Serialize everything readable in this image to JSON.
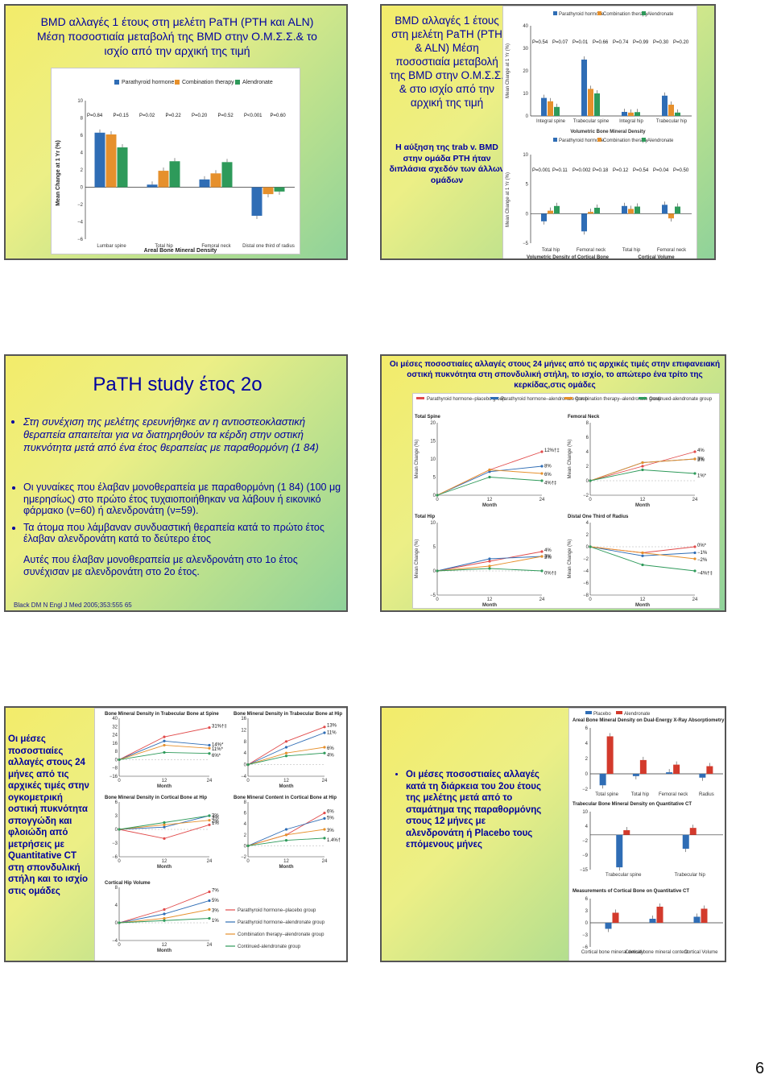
{
  "slide1": {
    "heading": "BMD αλλαγές 1 έτους στη μελέτη PaTH (PTH και ALN) Μέση ποσοστιαία μεταβολή της BMD στην Ο.Μ.Σ.Σ.& το ισχίο από την αρχική της τιμή",
    "chart_data": {
      "type": "bar",
      "title": "",
      "xlabel": "Areal Bone Mineral Density",
      "ylabel": "Mean Change at 1 Yr (%)",
      "ylim": [
        -6,
        10
      ],
      "yticks": [
        "10",
        "8",
        "6",
        "4",
        "2",
        "0",
        "−2",
        "−4",
        "−6"
      ],
      "categories": [
        "Lumbar spine",
        "Total hip",
        "Femoral neck",
        "Distal one third of radius"
      ],
      "series": [
        {
          "name": "Parathyroid hormone",
          "color": "#2f6db5",
          "values": [
            6.3,
            0.3,
            0.9,
            -3.3
          ]
        },
        {
          "name": "Combination therapy",
          "color": "#e6902c",
          "values": [
            6.1,
            1.9,
            1.6,
            -0.8
          ]
        },
        {
          "name": "Alendronate",
          "color": "#2e9a5a",
          "values": [
            4.6,
            3.0,
            2.9,
            -0.5
          ]
        }
      ],
      "pvalues": [
        [
          "P=0.84",
          "P=0.15"
        ],
        [
          "P=0.02",
          "P=0.22"
        ],
        [
          "P=0.20",
          "P=0.52"
        ],
        [
          "P<0.001",
          "P=0.60"
        ]
      ]
    }
  },
  "slide2": {
    "heading": "BMD αλλαγές 1 έτους στη μελέτη PaTH (PTH & ALN) Μέση ποσοστιαία μεταβολή της BMD στην Ο.Μ.Σ.Σ. & στο ισχίο από την αρχική της τιμή",
    "note": "Η αύξηση της trab v. BMD στην ομάδα PTH ήταν διπλάσια σχεδόν των άλλων ομάδων",
    "chart_top": {
      "type": "bar",
      "xlabel": "Volumetric Bone Mineral Density",
      "ylabel": "Mean Change at 1 Yr (%)",
      "ylim": [
        0,
        40
      ],
      "yticks": [
        "40",
        "30",
        "20",
        "10",
        "0"
      ],
      "categories": [
        "Integral spine",
        "Trabecular spine",
        "Integral hip",
        "Trabecular hip"
      ],
      "series": [
        {
          "name": "Parathyroid hormone",
          "color": "#2f6db5",
          "values": [
            8,
            25,
            1.8,
            9
          ]
        },
        {
          "name": "Combination therapy",
          "color": "#e6902c",
          "values": [
            6.5,
            12,
            1.5,
            5
          ]
        },
        {
          "name": "Alendronate",
          "color": "#2e9a5a",
          "values": [
            4,
            10,
            1.7,
            1.5
          ]
        }
      ],
      "pvalues": [
        [
          "P=0.54",
          "P=0.07"
        ],
        [
          "P=0.01",
          "P=0.66"
        ],
        [
          "P=0.74",
          "P=0.99"
        ],
        [
          "P=0.30",
          "P=0.20"
        ]
      ]
    },
    "chart_bottom": {
      "type": "bar",
      "xlabel": "Volumetric Density of Cortical Bone",
      "xlabel2": "Cortical Volume",
      "ylabel": "Mean Change at 1 Yr (%)",
      "ylim": [
        -5,
        10
      ],
      "yticks": [
        "10",
        "5",
        "0",
        "−5"
      ],
      "categories": [
        "Total hip",
        "Femoral neck",
        "Total hip",
        "Femoral neck"
      ],
      "series": [
        {
          "name": "Parathyroid hormone",
          "color": "#2f6db5",
          "values": [
            -1.3,
            -3.0,
            1.3,
            1.5
          ]
        },
        {
          "name": "Combination therapy",
          "color": "#e6902c",
          "values": [
            0.5,
            0.3,
            0.8,
            -0.8
          ]
        },
        {
          "name": "Alendronate",
          "color": "#2e9a5a",
          "values": [
            1.3,
            1.0,
            1.2,
            1.2
          ]
        }
      ],
      "pvalues": [
        [
          "P=0.001",
          "P=0.11"
        ],
        [
          "P=0.002",
          "P=0.18"
        ],
        [
          "P=0.12",
          "P=0.54"
        ],
        [
          "P=0.04",
          "P=0.50"
        ]
      ]
    },
    "legend": [
      "Parathyroid hormone",
      "Combination therapy",
      "Alendronate"
    ]
  },
  "slide3": {
    "title": "PaTH study έτος 2ο",
    "intro": "Στη συνέχιση της μελέτης ερευνήθηκε αν η αντιοστεοκλαστική θεραπεία απαιτείται για να διατηρηθούν τα κέρδη στην οστική πυκνότητα μετά από ένα έτος θεραπείας με παραθορμόνη (1 84)",
    "bullets": [
      "Οι γυναίκες που έλαβαν μονοθεραπεία με παραθορμόνη (1 84) (100 μg ημερησίως) στο πρώτο έτος τυχαιοποιήθηκαν να λάβουν ή εικονικό φάρμακο (ν=60) ή αλενδρονάτη (ν=59).",
      "Τα άτομα που λάμβαναν συνδυαστική θεραπεία κατά το πρώτο έτος έλαβαν αλενδρονάτη κατά το δεύτερο έτος"
    ],
    "closing": "Αυτές που έλαβαν μονοθεραπεία με αλενδρονάτη στο 1ο έτος συνέχισαν με αλενδρονάτη στο 2ο έτος.",
    "citation": "Black DM N Engl J Med 2005;353:555 65"
  },
  "slide4": {
    "heading": "Οι μέσες ποσοστιαίες αλλαγές στους 24 μήνες από τις αρχικές τιμές στην επιφανειακή οστική πυκνότητα στη σπονδυλική στήλη, το ισχίο, το απώτερο ένα τρίτο της κερκίδας,στις ομάδες",
    "legend": [
      "Parathyroid hormone–placebo group",
      "Parathyroid hormone–alendronate group",
      "Combination therapy–alendronate group",
      "Continued-alendronate group"
    ],
    "xlabel": "Month",
    "ylabel": "Mean Change (%)",
    "chart_data": [
      {
        "type": "line",
        "title": "Total Spine",
        "x": [
          0,
          12,
          24
        ],
        "ylim": [
          0,
          20
        ],
        "yticks": [
          "20",
          "15",
          "10",
          "5",
          "0"
        ],
        "series": [
          {
            "values": [
              0,
              7,
              12
            ]
          },
          {
            "values": [
              0,
              6.5,
              8
            ]
          },
          {
            "values": [
              0,
              7,
              6
            ]
          },
          {
            "values": [
              0,
              5,
              4
            ]
          }
        ],
        "labels": [
          "12%†‡",
          "8%",
          "6%",
          "4%†‡"
        ]
      },
      {
        "type": "line",
        "title": "Femoral Neck",
        "x": [
          0,
          12,
          24
        ],
        "ylim": [
          -2,
          8
        ],
        "yticks": [
          "8",
          "6",
          "4",
          "2",
          "0",
          "−2"
        ],
        "series": [
          {
            "values": [
              0,
              2,
              4
            ]
          },
          {
            "values": [
              0,
              2.5,
              3
            ]
          },
          {
            "values": [
              0,
              2.5,
              3
            ]
          },
          {
            "values": [
              0,
              1.5,
              1
            ]
          }
        ],
        "labels": [
          "4%",
          "3%",
          "3%",
          "1%*"
        ]
      },
      {
        "type": "line",
        "title": "Total Hip",
        "x": [
          0,
          12,
          24
        ],
        "ylim": [
          -5,
          10
        ],
        "yticks": [
          "10",
          "5",
          "0",
          "−5"
        ],
        "series": [
          {
            "values": [
              0,
              2,
              4
            ]
          },
          {
            "values": [
              0,
              2.5,
              3
            ]
          },
          {
            "values": [
              0,
              1,
              3
            ]
          },
          {
            "values": [
              0,
              0.5,
              0
            ]
          }
        ],
        "labels": [
          "4%",
          "3%",
          "3%",
          "0%†‡"
        ]
      },
      {
        "type": "line",
        "title": "Distal One Third of Radius",
        "x": [
          0,
          12,
          24
        ],
        "ylim": [
          -8,
          4
        ],
        "yticks": [
          "4",
          "2",
          "0",
          "−2",
          "−4",
          "−6",
          "−8"
        ],
        "series": [
          {
            "values": [
              0,
              -1,
              0
            ]
          },
          {
            "values": [
              0,
              -1.5,
              -1
            ]
          },
          {
            "values": [
              0,
              -1,
              -2
            ]
          },
          {
            "values": [
              0,
              -3,
              -4
            ]
          }
        ],
        "labels": [
          "0%*",
          "−1%",
          "−2%",
          "−4%†‡"
        ]
      }
    ]
  },
  "slide5": {
    "text": "Οι μέσες ποσοστιαίες αλλαγές στους 24 μήνες από τις αρχικές τιμές στην ογκομετρική οστική πυκνότητα σπογγώδη και φλοιώδη από μετρήσεις με Quantitative CT στη σπονδυλική στήλη και το ισχίο στις ομάδες",
    "chart_data": [
      {
        "type": "line",
        "title": "Bone Mineral Density in Trabecular Bone at Spine",
        "x": [
          0,
          12,
          24
        ],
        "ylim": [
          -16,
          40
        ],
        "yticks": [
          "40",
          "32",
          "24",
          "16",
          "8",
          "0",
          "−8",
          "−16"
        ],
        "series": [
          {
            "values": [
              0,
              22,
              31
            ]
          },
          {
            "values": [
              0,
              18,
              14
            ]
          },
          {
            "values": [
              0,
              14,
              11
            ]
          },
          {
            "values": [
              0,
              7,
              6
            ]
          }
        ],
        "labels": [
          "31%†‡",
          "14%*",
          "11%*",
          "6%*"
        ]
      },
      {
        "type": "line",
        "title": "Bone Mineral Density in Trabecular Bone at Hip",
        "x": [
          0,
          12,
          24
        ],
        "ylim": [
          -4,
          16
        ],
        "yticks": [
          "16",
          "12",
          "8",
          "4",
          "0",
          "−4"
        ],
        "series": [
          {
            "values": [
              0,
              8,
              13
            ]
          },
          {
            "values": [
              0,
              6,
              11
            ]
          },
          {
            "values": [
              0,
              4,
              6
            ]
          },
          {
            "values": [
              0,
              3,
              4
            ]
          }
        ],
        "labels": [
          "13%",
          "11%",
          "6%",
          "4%"
        ]
      },
      {
        "type": "line",
        "title": "Bone Mineral Density in Cortical Bone at Hip",
        "x": [
          0,
          12,
          24
        ],
        "ylim": [
          -6,
          6
        ],
        "yticks": [
          "6",
          "3",
          "0",
          "−3",
          "−6"
        ],
        "series": [
          {
            "values": [
              0,
              -2,
              1
            ]
          },
          {
            "values": [
              0,
              0.5,
              3
            ]
          },
          {
            "values": [
              0,
              1,
              2
            ]
          },
          {
            "values": [
              0,
              1.5,
              3
            ]
          }
        ],
        "labels": [
          "1%",
          "3%",
          "2%",
          "3%"
        ]
      },
      {
        "type": "line",
        "title": "Bone Mineral Content in Cortical Bone at Hip",
        "x": [
          0,
          12,
          24
        ],
        "ylim": [
          -2,
          8
        ],
        "yticks": [
          "8",
          "6",
          "4",
          "2",
          "0",
          "−2"
        ],
        "series": [
          {
            "values": [
              0,
              2,
              6
            ]
          },
          {
            "values": [
              0,
              3,
              5
            ]
          },
          {
            "values": [
              0,
              2,
              3
            ]
          },
          {
            "values": [
              0,
              1,
              1.4
            ]
          }
        ],
        "labels": [
          "6%",
          "5%",
          "3%",
          "1.4%†"
        ]
      },
      {
        "type": "line",
        "title": "Cortical Hip Volume",
        "x": [
          0,
          12,
          24
        ],
        "ylim": [
          -4,
          8
        ],
        "yticks": [
          "8",
          "4",
          "0",
          "−4"
        ],
        "series": [
          {
            "values": [
              0,
              3,
              7
            ]
          },
          {
            "values": [
              0,
              2,
              5
            ]
          },
          {
            "values": [
              0,
              1,
              3
            ]
          },
          {
            "values": [
              0,
              0.5,
              1
            ]
          }
        ],
        "labels": [
          "7%",
          "5%",
          "3%",
          "1%"
        ]
      }
    ],
    "legend": [
      "Parathyroid hormone–placebo group",
      "Parathyroid hormone–alendronate group",
      "Combination therapy–alendronate group",
      "Continued-alendronate group"
    ],
    "xlabel": "Month"
  },
  "slide6": {
    "text": "Οι μέσες ποσοστιαίες αλλαγές κατά τη διάρκεια του 2ου έτους της μελέτης μετά από το σταμάτημα της παραθορμόνης στους 12 μήνες με αλενδρονάτη ή Placebo τους επόμενους μήνες",
    "legend": [
      "Placebo",
      "Alendronate"
    ],
    "chart_data": [
      {
        "type": "bar",
        "title": "Areal Bone Mineral Density on Dual-Energy X-Ray Absorptiometry",
        "ylim": [
          -2,
          6
        ],
        "categories": [
          "Total spine",
          "Total hip",
          "Femoral neck",
          "Radius"
        ],
        "series": [
          {
            "name": "Placebo",
            "values": [
              -1.5,
              -0.3,
              0.2,
              -0.5
            ]
          },
          {
            "name": "Alendronate",
            "values": [
              4.9,
              1.8,
              1.2,
              1.0
            ]
          }
        ]
      },
      {
        "type": "bar",
        "title": "Trabecular Bone Mineral Density on Quantitative CT",
        "ylim": [
          -15,
          10
        ],
        "categories": [
          "Trabecular spine",
          "Trabecular hip"
        ],
        "series": [
          {
            "name": "Placebo",
            "values": [
              -14,
              -6
            ]
          },
          {
            "name": "Alendronate",
            "values": [
              2,
              3
            ]
          }
        ]
      },
      {
        "type": "bar",
        "title": "Measurements of Cortical Bone on Quantitative CT",
        "ylim": [
          -6,
          6
        ],
        "categories": [
          "Cortical bone mineral density",
          "Cortical bone mineral content",
          "Cortical Volume"
        ],
        "series": [
          {
            "name": "Placebo",
            "values": [
              -1.5,
              1.0,
              1.5
            ]
          },
          {
            "name": "Alendronate",
            "values": [
              2.5,
              4.0,
              3.5
            ]
          }
        ]
      }
    ]
  },
  "page": {
    "number": "6"
  }
}
